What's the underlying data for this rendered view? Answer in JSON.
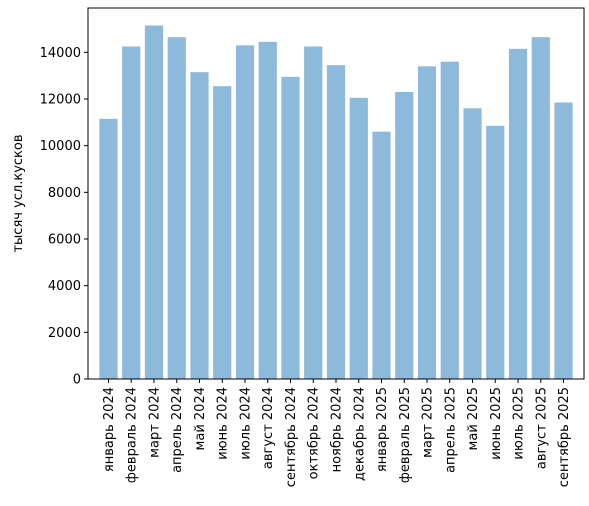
{
  "chart_data": {
    "type": "bar",
    "title": "",
    "xlabel": "",
    "ylabel": "тысяч усл.кусков",
    "categories": [
      "январь 2024",
      "февраль 2024",
      "март 2024",
      "апрель 2024",
      "май 2024",
      "июнь 2024",
      "июль 2024",
      "август 2024",
      "сентябрь 2024",
      "октябрь 2024",
      "ноябрь 2024",
      "декабрь 2024",
      "январь 2025",
      "февраль 2025",
      "март 2025",
      "апрель 2025",
      "май 2025",
      "июнь 2025",
      "июль 2025",
      "август 2025",
      "сентябрь 2025"
    ],
    "values": [
      11150,
      14250,
      15150,
      14650,
      13150,
      12550,
      14300,
      14450,
      12950,
      14250,
      13450,
      12050,
      10600,
      12300,
      13400,
      13600,
      11600,
      10850,
      14150,
      14650,
      11850
    ],
    "ylim": [
      0,
      15900
    ],
    "yticks": [
      0,
      2000,
      4000,
      6000,
      8000,
      10000,
      12000,
      14000
    ],
    "grid": false,
    "bar_color": "#8db9db"
  }
}
